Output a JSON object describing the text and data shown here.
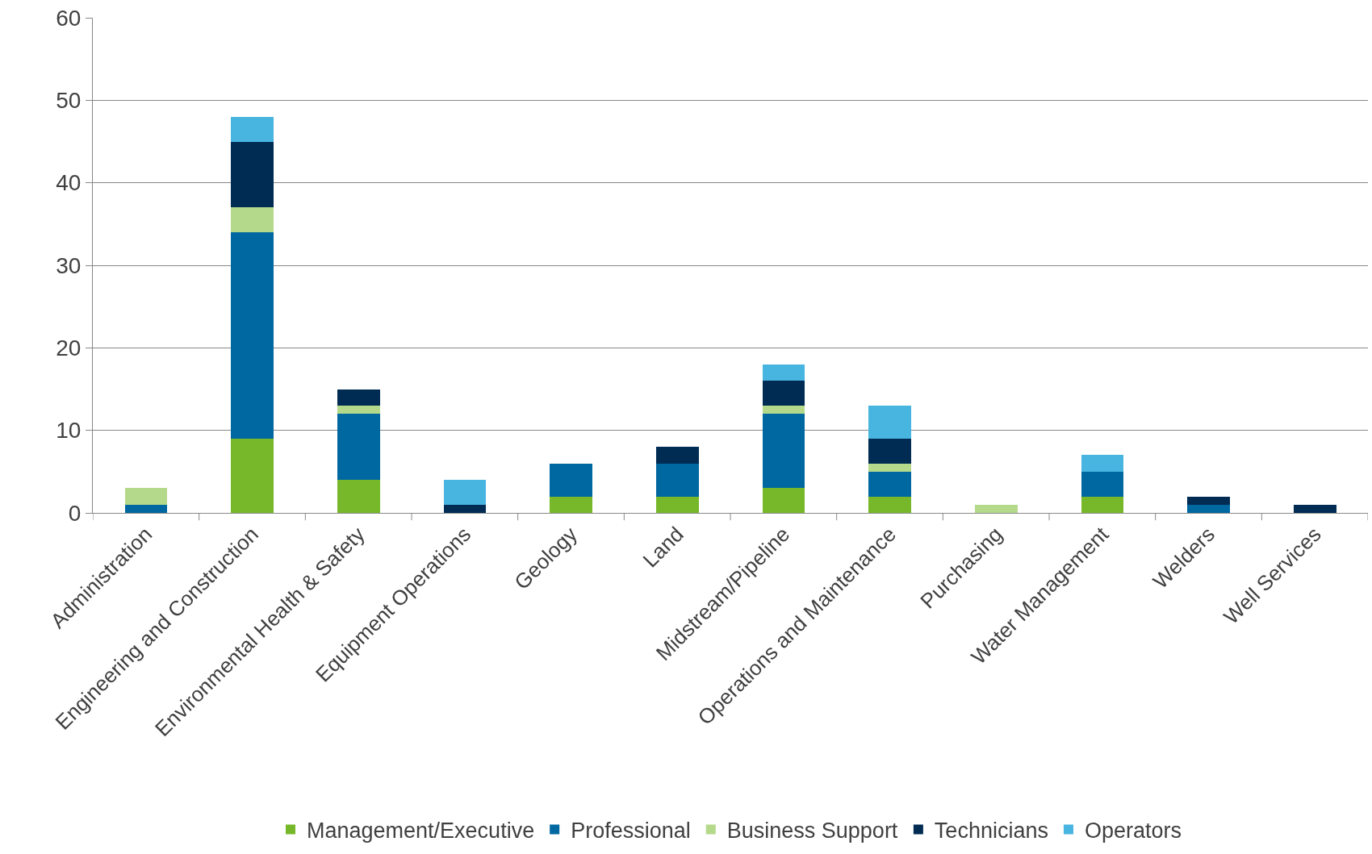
{
  "chart_data": {
    "type": "bar",
    "stacked": true,
    "categories": [
      "Administration",
      "Engineering and Construction",
      "Environmental Health & Safety",
      "Equipment Operations",
      "Geology",
      "Land",
      "Midstream/Pipeline",
      "Operations and Maintenance",
      "Purchasing",
      "Water Management",
      "Welders",
      "Well Services"
    ],
    "series": [
      {
        "name": "Management/Executive",
        "color": "#77b82a",
        "values": [
          0,
          9,
          4,
          0,
          2,
          2,
          3,
          2,
          0,
          2,
          0,
          0
        ]
      },
      {
        "name": "Professional",
        "color": "#0068a1",
        "values": [
          1,
          25,
          8,
          0,
          4,
          4,
          9,
          3,
          0,
          3,
          1,
          0
        ]
      },
      {
        "name": "Business Support",
        "color": "#b5d98b",
        "values": [
          2,
          3,
          1,
          0,
          0,
          0,
          1,
          1,
          1,
          0,
          0,
          0
        ]
      },
      {
        "name": "Technicians",
        "color": "#002c54",
        "values": [
          0,
          8,
          2,
          1,
          0,
          2,
          3,
          3,
          0,
          0,
          1,
          1
        ]
      },
      {
        "name": "Operators",
        "color": "#48b5e0",
        "values": [
          0,
          3,
          0,
          3,
          0,
          0,
          2,
          4,
          0,
          2,
          0,
          0
        ]
      }
    ],
    "ylim": [
      0,
      60
    ],
    "yticks": [
      0,
      10,
      20,
      30,
      40,
      50,
      60
    ],
    "grid": "y",
    "legend": "bottom"
  }
}
